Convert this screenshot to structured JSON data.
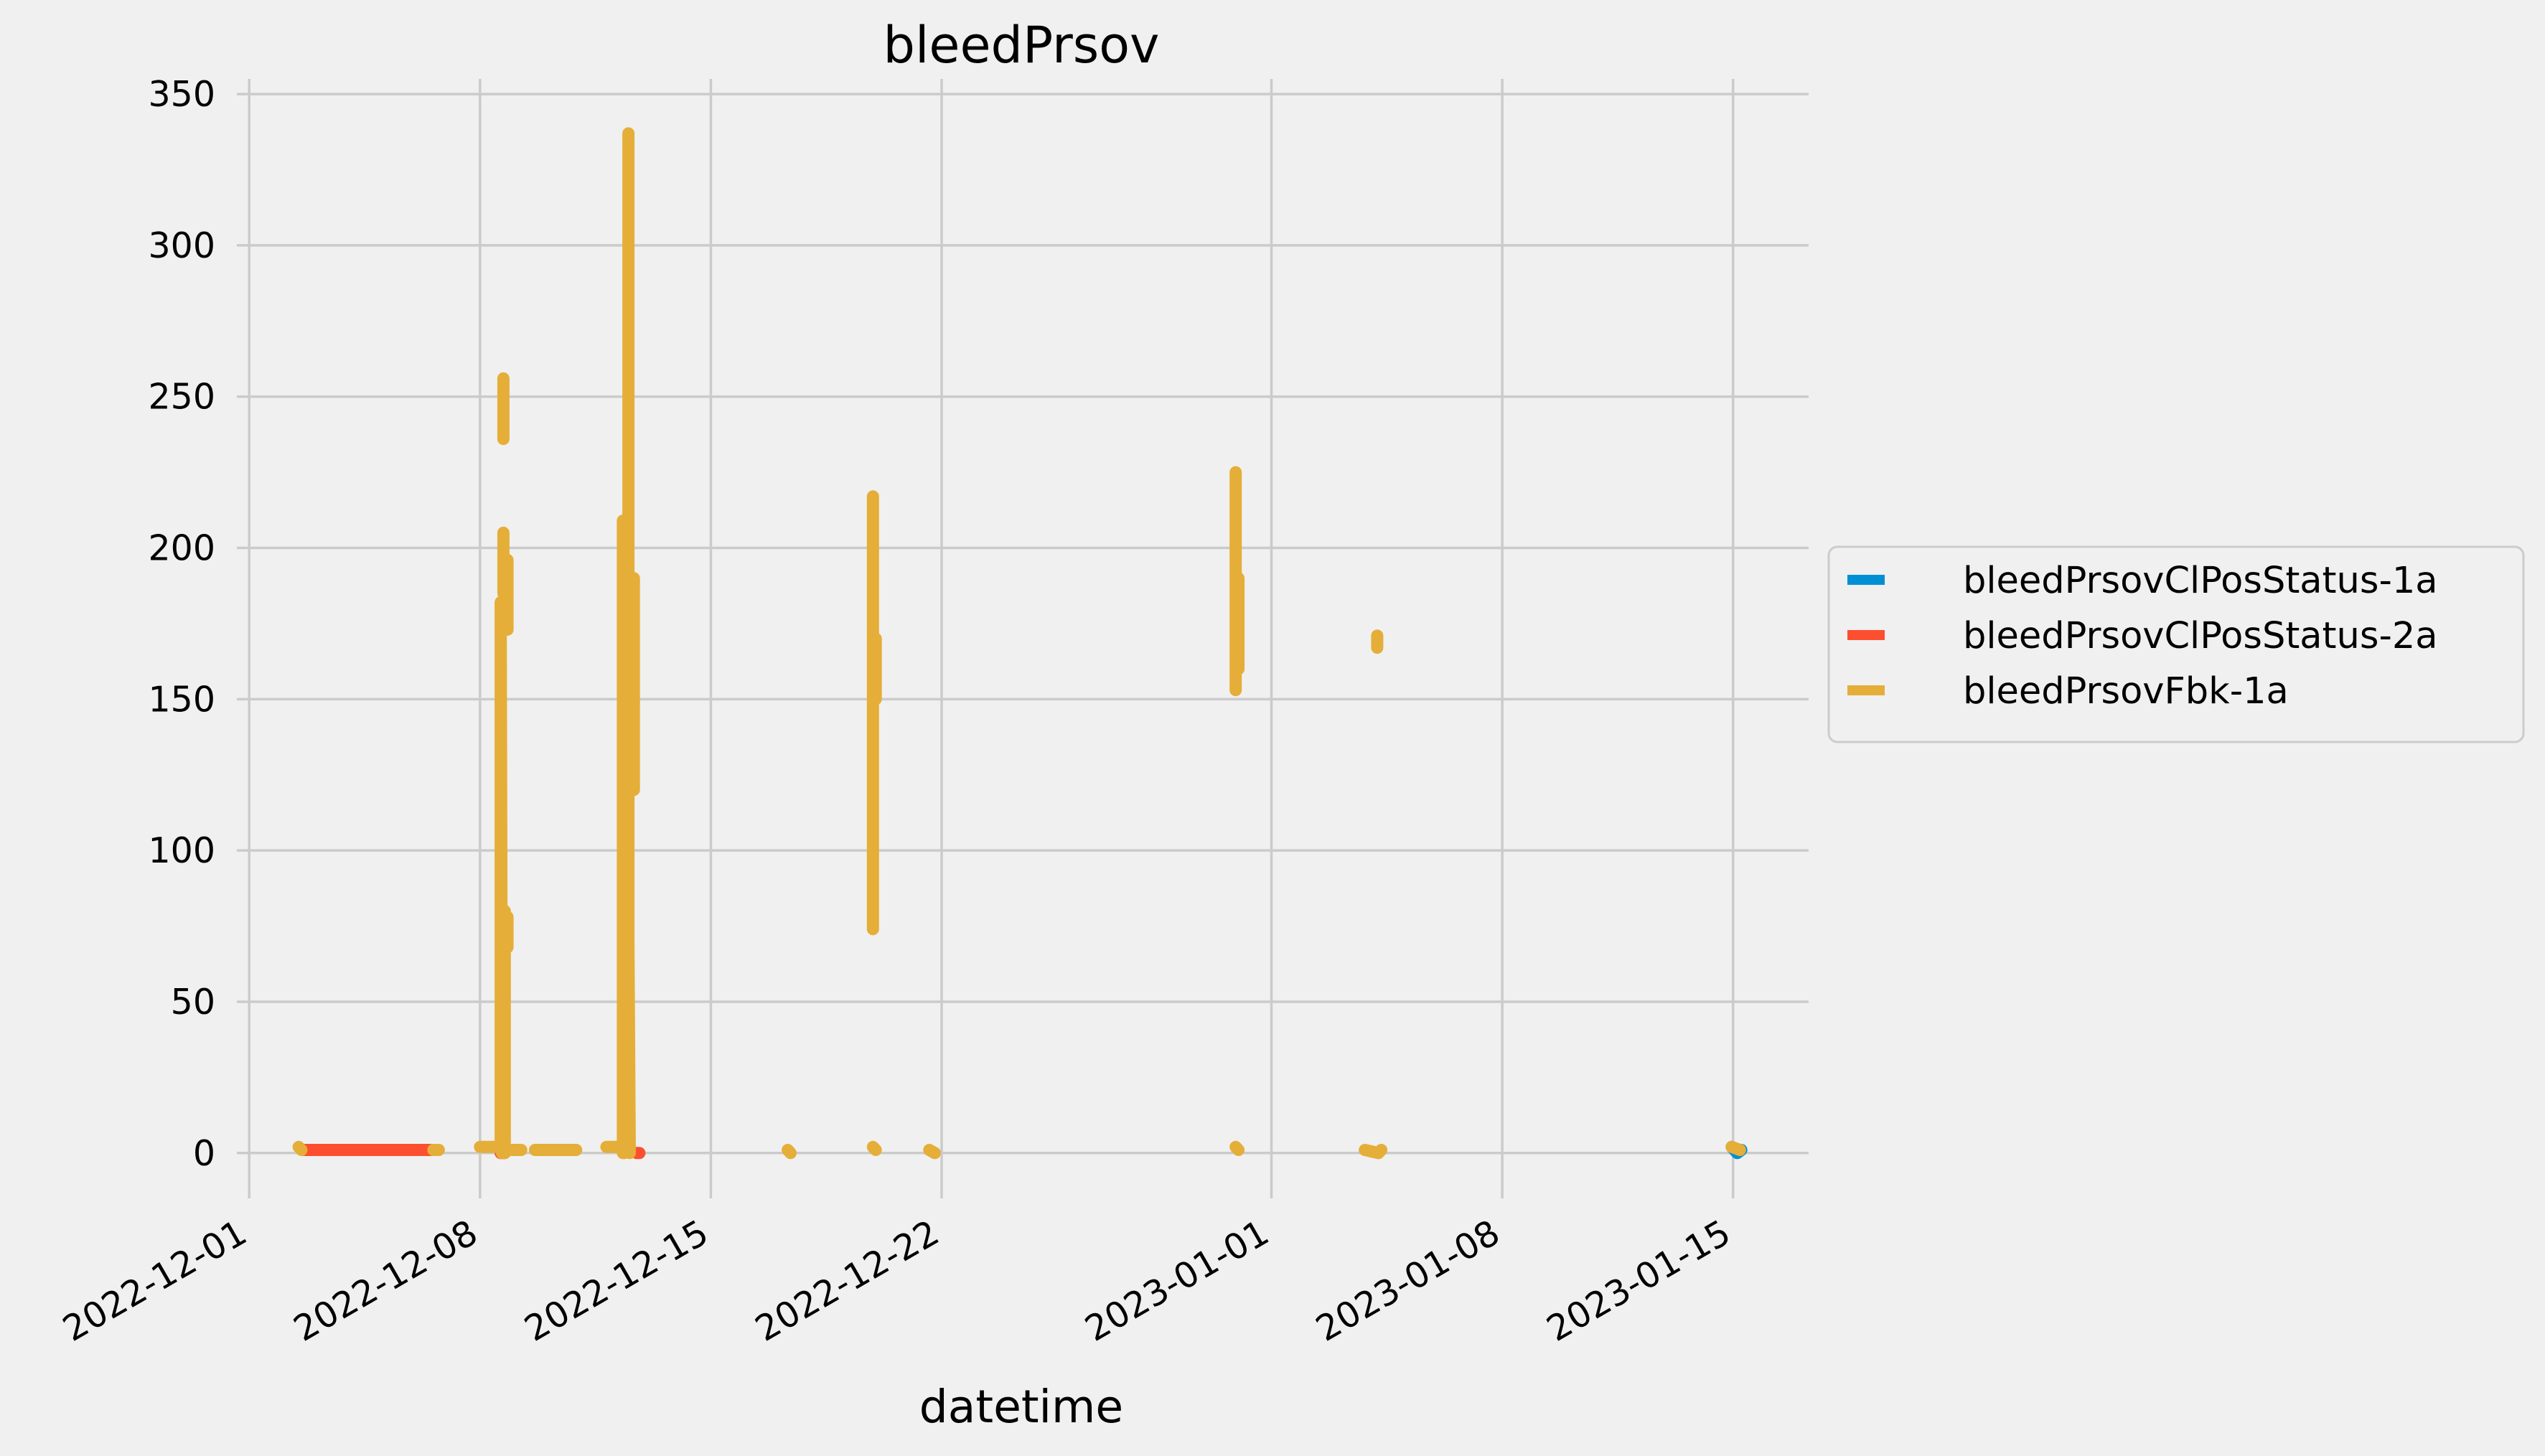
{
  "chart_data": {
    "type": "line",
    "title": "bleedPrsov",
    "xlabel": "datetime",
    "ylabel": "",
    "x_ticks": [
      "2022-12-01",
      "2022-12-08",
      "2022-12-15",
      "2022-12-22",
      "2023-01-01",
      "2023-01-08",
      "2023-01-15"
    ],
    "y_ticks": [
      0,
      50,
      100,
      150,
      200,
      250,
      300,
      350
    ],
    "xlim": [
      "2022-11-30T15:00",
      "2023-01-17T07:00"
    ],
    "ylim": [
      -15,
      355
    ],
    "grid": true,
    "legend_position": "center-right-outside",
    "series": [
      {
        "name": "bleedPrsovClPosStatus-1a",
        "color": "#008fd5",
        "segments": [
          [
            [
              "2023-01-14T23:00",
              2
            ],
            [
              "2023-01-15T03:00",
              0
            ],
            [
              "2023-01-15T06:00",
              1
            ]
          ]
        ]
      },
      {
        "name": "bleedPrsovClPosStatus-2a",
        "color": "#fc4f30",
        "segments": [
          [
            [
              "2022-12-02T16:00",
              1
            ],
            [
              "2022-12-06T12:00",
              1
            ]
          ],
          [
            [
              "2022-12-08T15:00",
              0
            ],
            [
              "2022-12-08T18:00",
              0
            ]
          ],
          [
            [
              "2022-12-12T18:00",
              0
            ],
            [
              "2022-12-12T20:00",
              0
            ]
          ]
        ]
      },
      {
        "name": "bleedPrsovFbk-1a",
        "color": "#e5ae38",
        "segments": [
          [
            [
              "2022-12-02T12:00",
              2
            ],
            [
              "2022-12-02T14:00",
              1
            ]
          ],
          [
            [
              "2022-12-06T14:00",
              1
            ],
            [
              "2022-12-06T18:00",
              1
            ]
          ],
          [
            [
              "2022-12-08T00:00",
              2
            ],
            [
              "2022-12-08T12:00",
              2
            ]
          ],
          [
            [
              "2022-12-08T15:00",
              2
            ],
            [
              "2022-12-08T15:00",
              182
            ],
            [
              "2022-12-08T16:00",
              0
            ]
          ],
          [
            [
              "2022-12-08T17:00",
              205
            ],
            [
              "2022-12-08T17:00",
              185
            ]
          ],
          [
            [
              "2022-12-08T17:00",
              256
            ],
            [
              "2022-12-08T17:00",
              236
            ]
          ],
          [
            [
              "2022-12-08T18:00",
              80
            ],
            [
              "2022-12-08T18:00",
              0
            ]
          ],
          [
            [
              "2022-12-08T20:00",
              196
            ],
            [
              "2022-12-08T20:00",
              173
            ]
          ],
          [
            [
              "2022-12-08T20:00",
              78
            ],
            [
              "2022-12-08T20:00",
              68
            ]
          ],
          [
            [
              "2022-12-08T20:00",
              1
            ],
            [
              "2022-12-09T06:00",
              1
            ]
          ],
          [
            [
              "2022-12-09T16:00",
              1
            ],
            [
              "2022-12-10T22:00",
              1
            ]
          ],
          [
            [
              "2022-12-11T20:00",
              2
            ],
            [
              "2022-12-12T06:00",
              2
            ]
          ],
          [
            [
              "2022-12-12T08:00",
              0
            ],
            [
              "2022-12-12T08:00",
              209
            ],
            [
              "2022-12-12T09:00",
              0
            ]
          ],
          [
            [
              "2022-12-12T12:00",
              337
            ],
            [
              "2022-12-12T12:00",
              70
            ],
            [
              "2022-12-12T13:00",
              0
            ]
          ],
          [
            [
              "2022-12-12T16:00",
              190
            ],
            [
              "2022-12-12T16:00",
              120
            ]
          ],
          [
            [
              "2022-12-17T08:00",
              1
            ],
            [
              "2022-12-17T10:00",
              0
            ]
          ],
          [
            [
              "2022-12-19T22:00",
              217
            ],
            [
              "2022-12-19T22:00",
              74
            ]
          ],
          [
            [
              "2022-12-20T00:00",
              170
            ],
            [
              "2022-12-20T00:00",
              150
            ]
          ],
          [
            [
              "2022-12-19T22:00",
              2
            ],
            [
              "2022-12-20T00:00",
              1
            ]
          ],
          [
            [
              "2022-12-21T15:00",
              1
            ],
            [
              "2022-12-21T19:00",
              0
            ]
          ],
          [
            [
              "2022-12-30T22:00",
              225
            ],
            [
              "2022-12-30T22:00",
              153
            ]
          ],
          [
            [
              "2022-12-31T00:00",
              190
            ],
            [
              "2022-12-31T00:00",
              160
            ]
          ],
          [
            [
              "2022-12-30T22:00",
              2
            ],
            [
              "2022-12-31T00:00",
              1
            ]
          ],
          [
            [
              "2023-01-03T20:00",
              1
            ],
            [
              "2023-01-04T06:00",
              0
            ],
            [
              "2023-01-04T08:00",
              1
            ]
          ],
          [
            [
              "2023-01-04T05:00",
              171
            ],
            [
              "2023-01-04T05:00",
              167
            ]
          ],
          [
            [
              "2023-01-14T23:00",
              2
            ],
            [
              "2023-01-15T05:00",
              1
            ]
          ]
        ]
      }
    ]
  }
}
